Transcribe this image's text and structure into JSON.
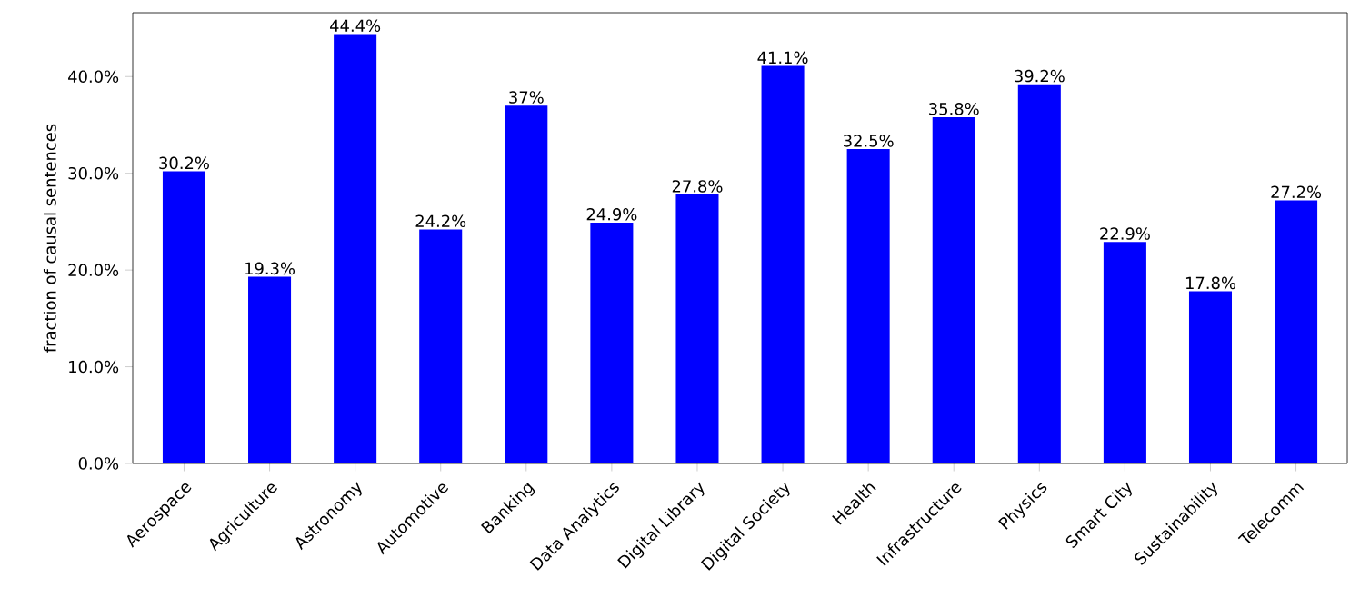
{
  "chart_data": {
    "type": "bar",
    "ylabel": "fraction of causal sentences",
    "categories": [
      "Aerospace",
      "Agriculture",
      "Astronomy",
      "Automotive",
      "Banking",
      "Data Analytics",
      "Digital Library",
      "Digital Society",
      "Health",
      "Infrastructure",
      "Physics",
      "Smart City",
      "Sustainability",
      "Telecomm"
    ],
    "values": [
      30.2,
      19.3,
      44.4,
      24.2,
      37,
      24.9,
      27.8,
      41.1,
      32.5,
      35.8,
      39.2,
      22.9,
      17.8,
      27.2
    ],
    "value_labels": [
      "30.2%",
      "19.3%",
      "44.4%",
      "24.2%",
      "37%",
      "24.9%",
      "27.8%",
      "41.1%",
      "32.5%",
      "35.8%",
      "39.2%",
      "22.9%",
      "17.8%",
      "27.2%"
    ],
    "color": "#0000ff",
    "ylim": [
      0,
      46.6
    ],
    "yticks": [
      {
        "value": 0,
        "label": "0.0%"
      },
      {
        "value": 10,
        "label": "10.0%"
      },
      {
        "value": 20,
        "label": "20.0%"
      },
      {
        "value": 30,
        "label": "30.0%"
      },
      {
        "value": 40,
        "label": "40.0%"
      }
    ],
    "grid": false
  }
}
